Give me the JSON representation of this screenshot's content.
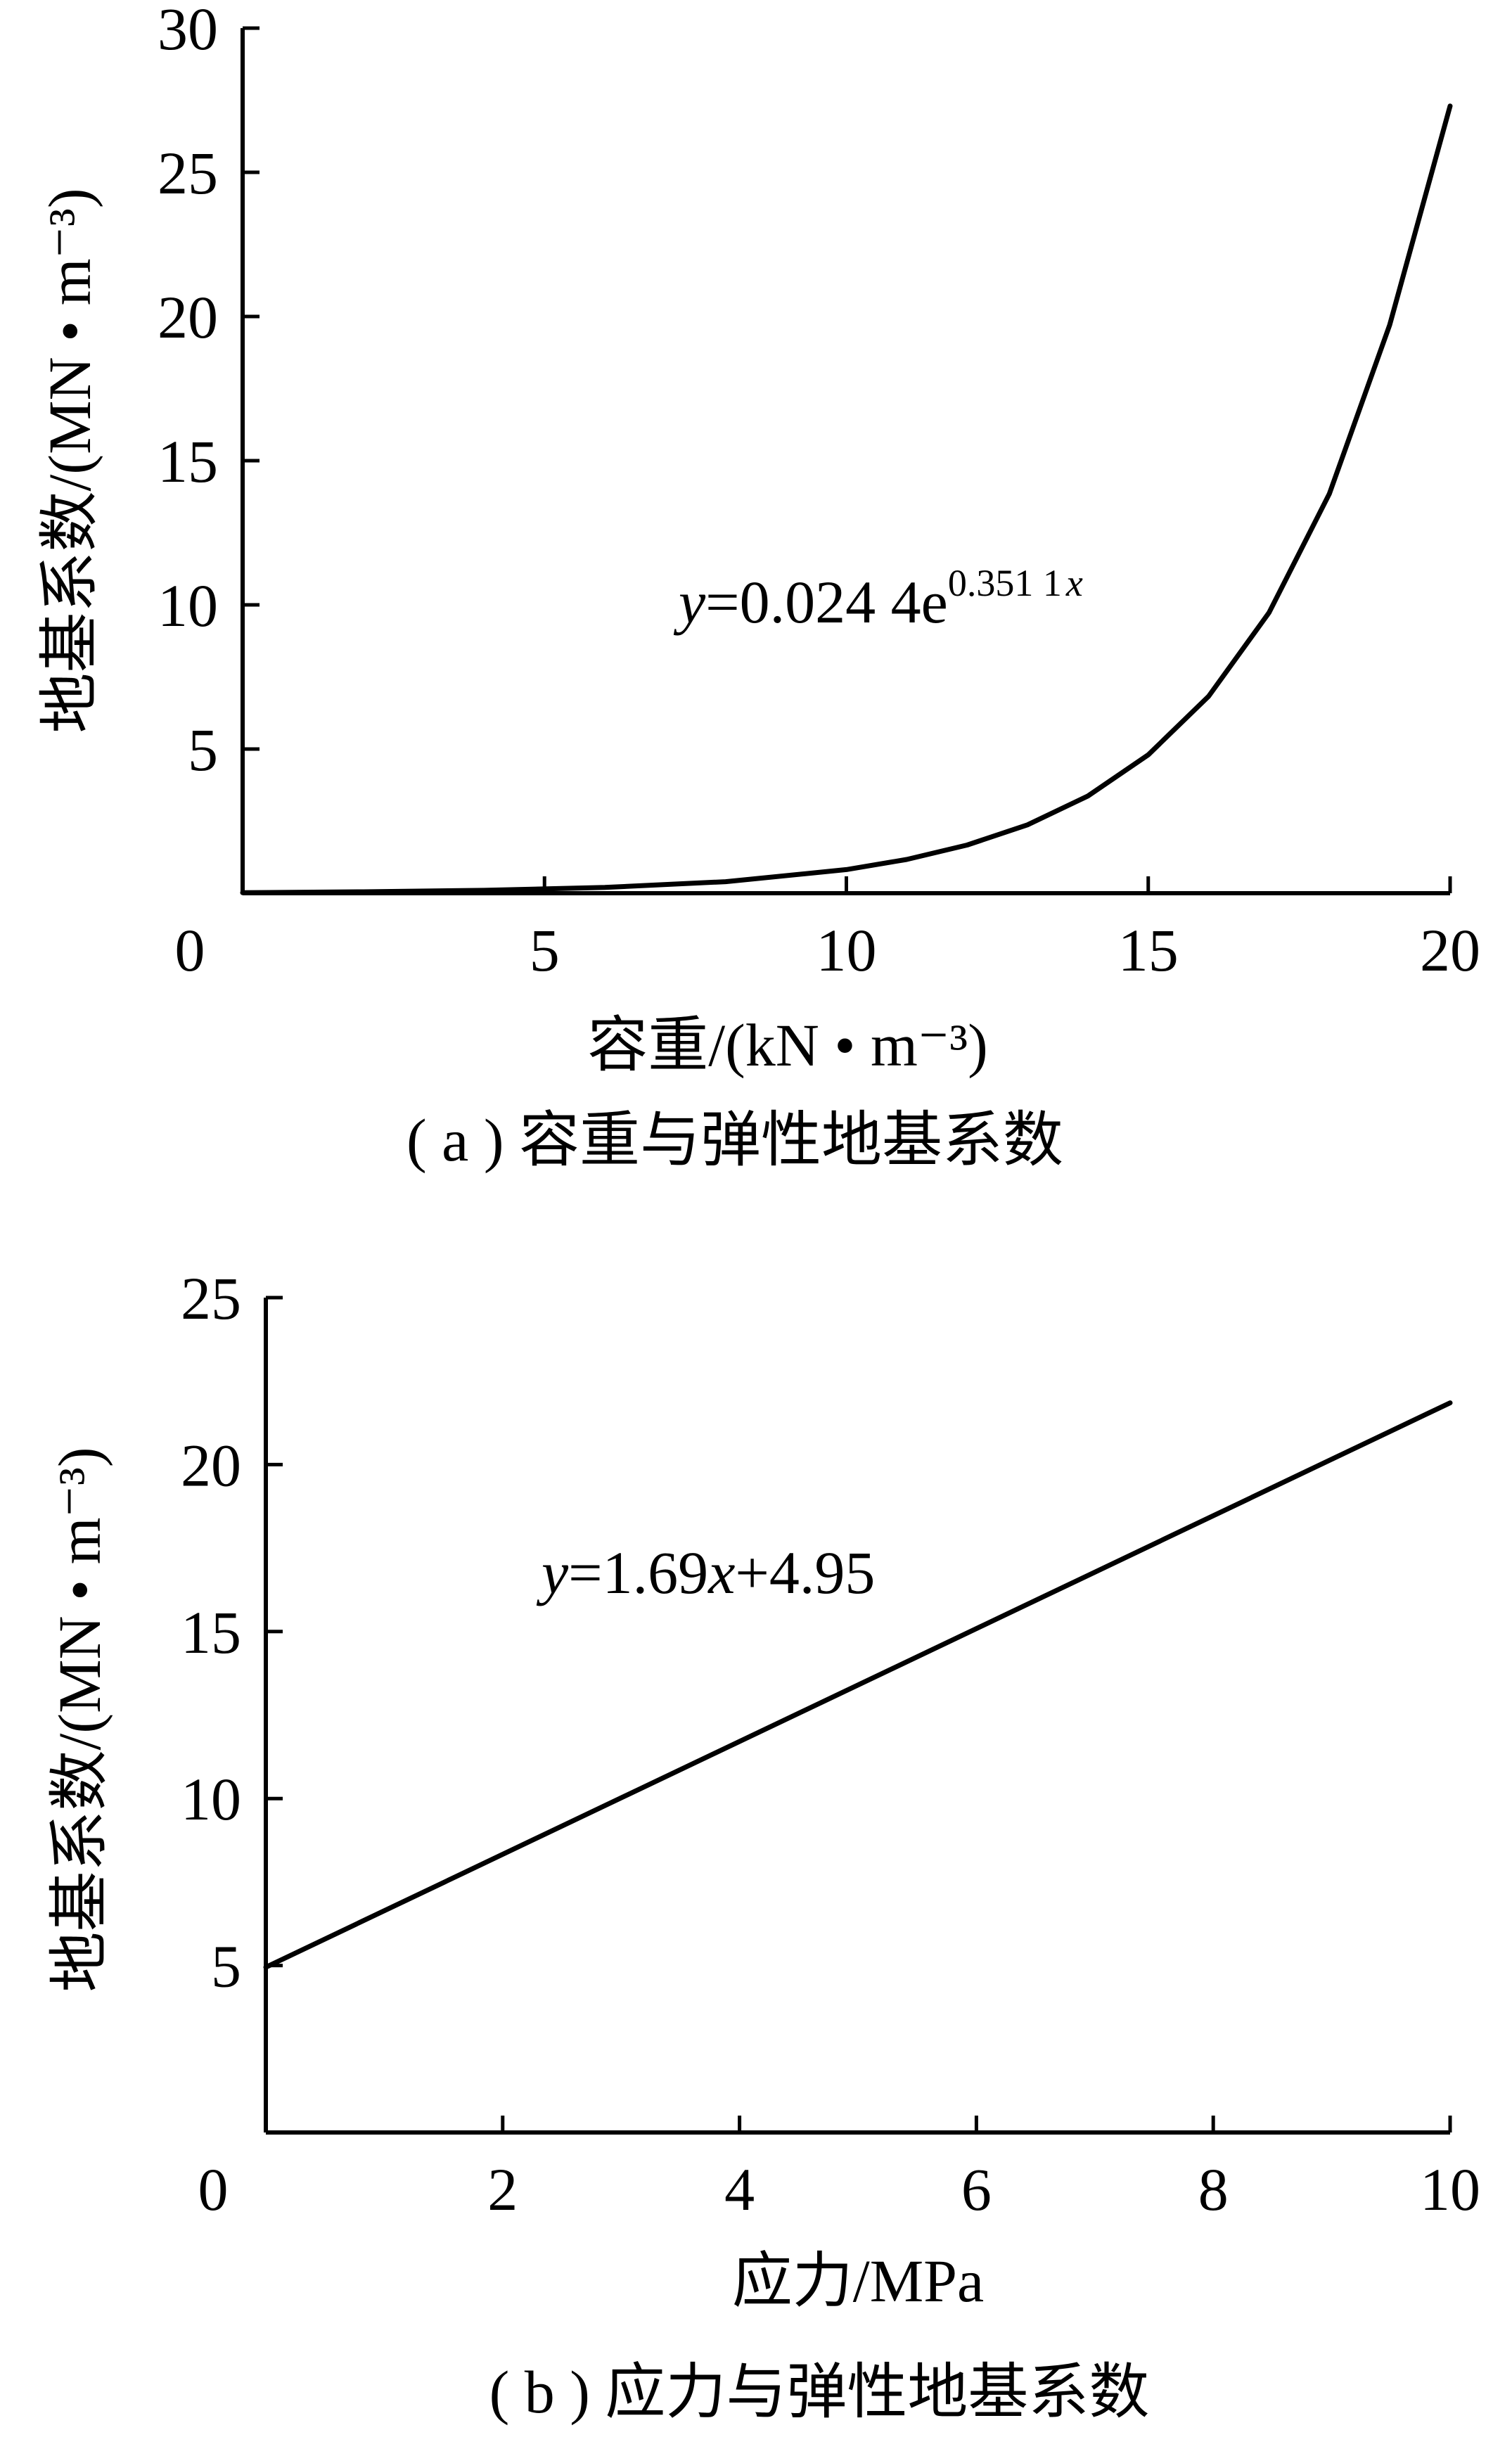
{
  "chart_data": [
    {
      "type": "line",
      "xlabel": "容重/(kN • m⁻³)",
      "ylabel": "地基系数/(MN • m⁻³)",
      "caption": "( a ) 容重与弹性地基系数",
      "equation": {
        "prefix": "y",
        "body": "=0.024 4e",
        "exponent": "0.351 1",
        "exponent_var": "x"
      },
      "xlim": [
        0,
        20
      ],
      "ylim": [
        0,
        30
      ],
      "xticks": [
        0,
        5,
        10,
        15,
        20
      ],
      "yticks": [
        5,
        10,
        15,
        20,
        25,
        30
      ],
      "x": [
        0,
        2,
        4,
        6,
        8,
        10,
        11,
        12,
        13,
        14,
        15,
        16,
        17,
        18,
        19,
        20
      ],
      "values": [
        0.02,
        0.05,
        0.1,
        0.2,
        0.4,
        0.82,
        1.17,
        1.67,
        2.37,
        3.37,
        4.8,
        6.83,
        9.73,
        13.85,
        19.71,
        27.3
      ],
      "grid": false
    },
    {
      "type": "line",
      "xlabel": "应力/MPa",
      "ylabel": "地基系数/(MN • m⁻³)",
      "caption": "( b ) 应力与弹性地基系数",
      "equation": {
        "prefix": "y",
        "body": "=1.69",
        "var": "x",
        "suffix": "+4.95"
      },
      "xlim": [
        0,
        10
      ],
      "ylim": [
        0,
        25
      ],
      "xticks": [
        0,
        2,
        4,
        6,
        8,
        10
      ],
      "yticks": [
        5,
        10,
        15,
        20,
        25
      ],
      "x": [
        0,
        10
      ],
      "values": [
        4.95,
        21.85
      ],
      "grid": false
    }
  ]
}
